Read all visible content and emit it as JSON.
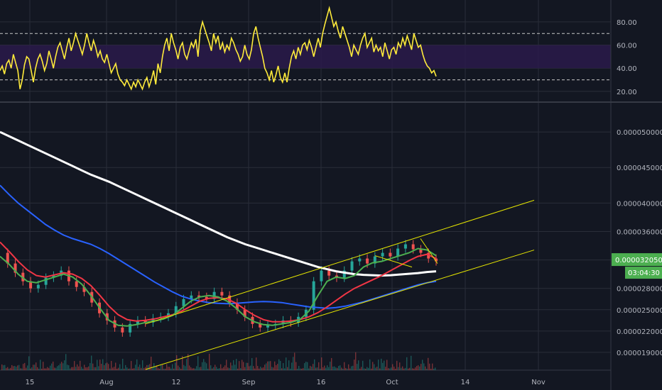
{
  "chart_data": [
    {
      "type": "line",
      "panel": "rsi",
      "yticks": [
        "80.00",
        "60.00",
        "40.00",
        "20.00"
      ],
      "ylim": [
        12,
        94
      ],
      "band": [
        40,
        60
      ],
      "levels": [
        70,
        30
      ],
      "colors": {
        "line": "#ffeb3b",
        "band": "#2a1a4a",
        "levels": "#c8c8c8"
      },
      "series": [
        {
          "values": [
            38,
            42,
            35,
            44,
            47,
            40,
            52,
            45,
            38,
            22,
            30,
            43,
            50,
            48,
            38,
            28,
            40,
            48,
            52,
            46,
            38,
            44,
            55,
            48,
            40,
            50,
            58,
            62,
            55,
            48,
            58,
            66,
            55,
            62,
            70,
            64,
            58,
            52,
            60,
            70,
            62,
            55,
            64,
            58,
            50,
            55,
            48,
            45,
            52,
            44,
            36,
            40,
            44,
            35,
            30,
            28,
            25,
            30,
            26,
            22,
            28,
            24,
            30,
            26,
            22,
            28,
            32,
            24,
            30,
            38,
            26,
            44,
            36,
            50,
            60,
            66,
            55,
            70,
            62,
            56,
            48,
            58,
            62,
            52,
            48,
            55,
            62,
            58,
            65,
            50,
            72,
            80,
            74,
            68,
            62,
            55,
            70,
            62,
            68,
            56,
            62,
            54,
            60,
            56,
            66,
            62,
            56,
            52,
            46,
            50,
            60,
            52,
            48,
            56,
            70,
            76,
            66,
            58,
            50,
            40,
            36,
            30,
            38,
            28,
            34,
            42,
            32,
            28,
            36,
            28,
            40,
            50,
            55,
            48,
            58,
            52,
            60,
            62,
            56,
            64,
            58,
            50,
            58,
            66,
            58,
            70,
            78,
            85,
            92,
            84,
            76,
            80,
            72,
            66,
            76,
            70,
            64,
            58,
            50,
            60,
            56,
            52,
            60,
            66,
            70,
            58,
            62,
            66,
            54,
            60,
            55,
            58,
            50,
            62,
            55,
            48,
            56,
            58,
            52,
            62,
            58,
            66,
            60,
            68,
            62,
            56,
            70,
            64,
            58,
            60,
            52,
            46,
            42,
            40,
            36,
            38,
            33
          ]
        }
      ]
    },
    {
      "type": "line",
      "panel": "price",
      "yticks": [
        "0.000050000",
        "0.000045000",
        "0.000040000",
        "0.000036000",
        "0.000032000",
        "0.000028000",
        "0.000025000",
        "0.000022000",
        "0.000019000"
      ],
      "price_tag": "0.000032050",
      "countdown": "03:04:30",
      "xticks": [
        "15",
        "Aug",
        "12",
        "Sep",
        "16",
        "Oct",
        "14",
        "Nov"
      ],
      "colors": {
        "ma200": "#ffffff",
        "ma100": "#2962ff",
        "ma30": "#f23645",
        "ma15": "#4caf50",
        "channel": "#e6e600",
        "price_badge": "#4caf50",
        "candles_up": "#26a69a",
        "candles_down": "#ef5350"
      },
      "series": [
        {
          "name_hidden": true,
          "key": "ma200",
          "values": [
            50.0,
            49.4,
            48.8,
            48.2,
            47.6,
            47.0,
            46.4,
            45.8,
            45.2,
            44.6,
            44.0,
            43.5,
            43.0,
            42.4,
            41.8,
            41.2,
            40.6,
            40.0,
            39.4,
            38.8,
            38.2,
            37.6,
            37.0,
            36.4,
            35.8,
            35.2,
            34.7,
            34.2,
            33.8,
            33.4,
            33.0,
            32.6,
            32.2,
            31.8,
            31.4,
            31.0,
            30.7,
            30.4,
            30.2,
            30.0,
            29.9,
            29.85,
            29.8,
            29.85,
            29.95,
            30.05,
            30.15,
            30.3,
            30.4
          ]
        },
        {
          "key": "ma100",
          "values": [
            42.5,
            41.2,
            40.0,
            39.0,
            38.0,
            37.0,
            36.2,
            35.5,
            35.0,
            34.6,
            34.2,
            33.6,
            32.9,
            32.1,
            31.3,
            30.5,
            29.7,
            28.9,
            28.2,
            27.5,
            26.9,
            26.5,
            26.2,
            26.0,
            25.9,
            25.85,
            25.9,
            26.0,
            26.1,
            26.15,
            26.1,
            26.0,
            25.8,
            25.6,
            25.4,
            25.3,
            25.2,
            25.3,
            25.5,
            25.8,
            26.1,
            26.5,
            26.9,
            27.3,
            27.7,
            28.1,
            28.5,
            28.8,
            29.0
          ]
        },
        {
          "key": "ma30",
          "values": [
            34.5,
            33.2,
            31.8,
            30.6,
            29.8,
            29.6,
            29.9,
            30.2,
            30.0,
            29.4,
            28.4,
            27.0,
            25.5,
            24.3,
            23.6,
            23.4,
            23.5,
            23.7,
            24.0,
            24.3,
            24.8,
            25.5,
            26.2,
            26.6,
            26.7,
            26.5,
            25.9,
            25.0,
            24.2,
            23.6,
            23.3,
            23.3,
            23.4,
            23.6,
            24.0,
            24.6,
            25.4,
            26.3,
            27.2,
            28.0,
            28.6,
            29.2,
            29.8,
            30.5,
            31.2,
            31.9,
            32.5,
            32.8,
            32.2
          ]
        },
        {
          "key": "ma15",
          "values": [
            32.5,
            31.4,
            30.0,
            29.0,
            28.8,
            29.2,
            29.6,
            30.0,
            29.6,
            28.6,
            27.0,
            25.2,
            23.5,
            22.8,
            22.7,
            22.9,
            23.2,
            23.4,
            23.7,
            24.2,
            25.2,
            26.2,
            26.8,
            27.0,
            26.8,
            26.2,
            25.2,
            24.0,
            23.3,
            22.9,
            22.8,
            23.0,
            23.2,
            23.6,
            24.8,
            27.0,
            29.0,
            29.6,
            29.4,
            29.8,
            31.0,
            31.6,
            31.8,
            32.2,
            32.6,
            33.0,
            33.6,
            33.4,
            32.6
          ]
        }
      ],
      "candles": {
        "comment": "price path in units of 1e-6",
        "values": [
          33.0,
          31.5,
          30.2,
          29.0,
          28.0,
          28.5,
          29.5,
          29.8,
          30.5,
          29.0,
          28.2,
          27.5,
          26.0,
          24.5,
          23.5,
          22.5,
          21.8,
          23.0,
          23.5,
          23.2,
          23.8,
          24.0,
          24.5,
          25.5,
          26.5,
          27.0,
          26.8,
          26.5,
          27.5,
          27.0,
          26.0,
          25.0,
          24.0,
          23.0,
          22.5,
          22.8,
          23.0,
          23.5,
          23.2,
          24.0,
          25.0,
          29.0,
          30.5,
          29.8,
          29.5,
          30.5,
          31.8,
          32.2,
          31.5,
          32.5,
          33.0,
          32.5,
          33.6,
          34.2,
          33.5,
          33.0,
          32.2,
          31.8
        ]
      },
      "ylim": [
        16.5,
        54.0
      ]
    }
  ]
}
